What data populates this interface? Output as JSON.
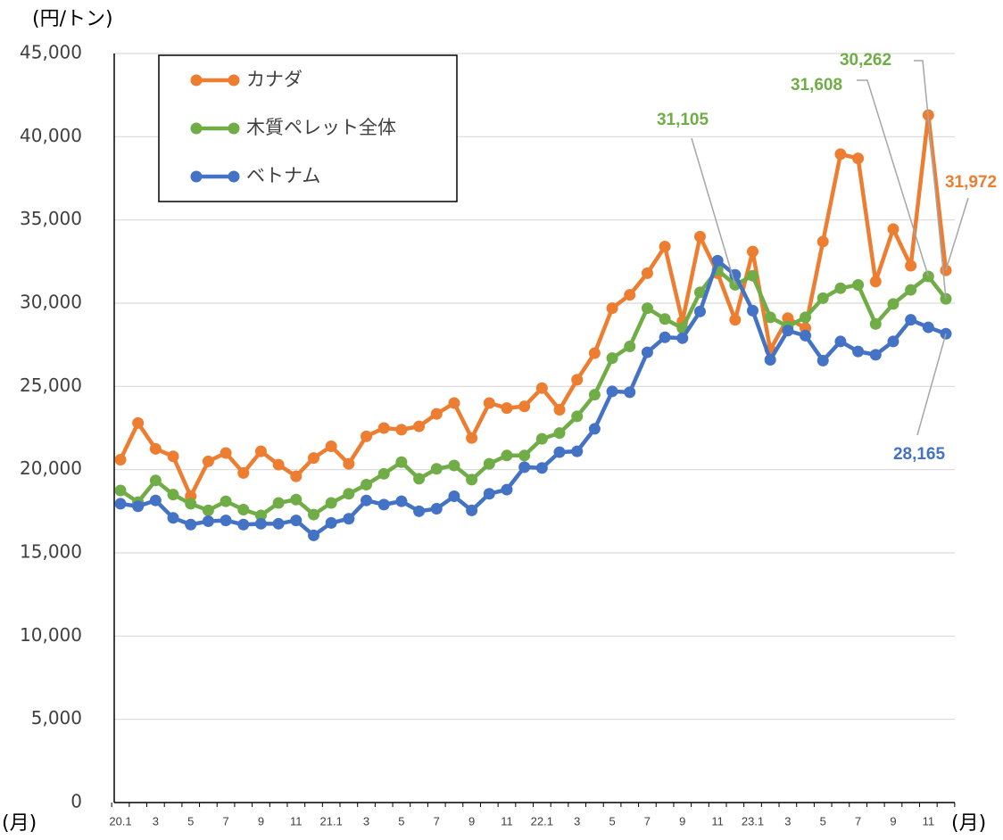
{
  "chart_data": {
    "type": "line",
    "y_label": "(円/トン)",
    "x_label": "(月)",
    "categories": [
      "20.1",
      null,
      "3",
      null,
      "5",
      null,
      "7",
      null,
      "9",
      null,
      "11",
      null,
      "21.1",
      null,
      "3",
      null,
      "5",
      null,
      "7",
      null,
      "9",
      null,
      "11",
      null,
      "22.1",
      null,
      "3",
      null,
      "5",
      null,
      "7",
      null,
      "9",
      null,
      "11",
      null,
      "23.1",
      null,
      "3",
      null,
      "5",
      null,
      "7",
      null,
      "9",
      null,
      "11",
      null
    ],
    "series": [
      {
        "name": "カナダ",
        "color": "#ed7d31",
        "values": [
          20600,
          22800,
          21250,
          20800,
          18400,
          20500,
          21000,
          19800,
          21100,
          20300,
          19600,
          20700,
          21400,
          20350,
          22000,
          22500,
          22400,
          22600,
          23350,
          24000,
          21900,
          24000,
          23700,
          23800,
          24900,
          23600,
          25400,
          27000,
          29700,
          30500,
          31800,
          33400,
          28900,
          34000,
          31800,
          29000,
          33100,
          27200,
          29100,
          28500,
          33700,
          38950,
          38700,
          31300,
          34450,
          32250,
          41300,
          31972
        ],
        "value_labels": [
          null,
          null,
          null,
          null,
          null,
          null,
          null,
          null,
          null,
          null,
          null,
          null,
          null,
          null,
          null,
          null,
          null,
          null,
          null,
          null,
          null,
          null,
          null,
          null,
          null,
          null,
          null,
          null,
          null,
          null,
          null,
          null,
          null,
          null,
          null,
          null,
          null,
          null,
          null,
          null,
          null,
          null,
          null,
          null,
          null,
          null,
          null,
          "31,972"
        ]
      },
      {
        "name": "木質ペレット全体",
        "color": "#70ad47",
        "values": [
          18750,
          18050,
          19350,
          18500,
          17950,
          17550,
          18100,
          17600,
          17250,
          18000,
          18200,
          17300,
          18000,
          18550,
          19100,
          19750,
          20450,
          19450,
          20050,
          20250,
          19400,
          20350,
          20850,
          20850,
          21850,
          22200,
          23200,
          24500,
          26700,
          27400,
          29700,
          29050,
          28500,
          30650,
          32000,
          31105,
          31650,
          29150,
          28600,
          29150,
          30300,
          30900,
          31100,
          28750,
          29950,
          30800,
          31608,
          30262
        ],
        "value_labels": [
          null,
          null,
          null,
          null,
          null,
          null,
          null,
          null,
          null,
          null,
          null,
          null,
          null,
          null,
          null,
          null,
          null,
          null,
          null,
          null,
          null,
          null,
          null,
          null,
          null,
          null,
          null,
          null,
          null,
          null,
          null,
          null,
          null,
          null,
          null,
          "31,105",
          null,
          null,
          null,
          null,
          null,
          null,
          null,
          null,
          null,
          null,
          "31,608",
          "30,262"
        ]
      },
      {
        "name": "ベトナム",
        "color": "#4472c4",
        "values": [
          17950,
          17800,
          18150,
          17100,
          16700,
          16900,
          16950,
          16700,
          16750,
          16750,
          16950,
          16050,
          16800,
          17050,
          18150,
          17900,
          18100,
          17500,
          17650,
          18400,
          17550,
          18550,
          18800,
          20150,
          20100,
          21050,
          21100,
          22450,
          24700,
          24650,
          27050,
          27950,
          27900,
          29500,
          32550,
          31700,
          29550,
          26600,
          28350,
          28050,
          26550,
          27700,
          27100,
          26900,
          27700,
          29000,
          28550,
          28165
        ],
        "value_labels": [
          null,
          null,
          null,
          null,
          null,
          null,
          null,
          null,
          null,
          null,
          null,
          null,
          null,
          null,
          null,
          null,
          null,
          null,
          null,
          null,
          null,
          null,
          null,
          null,
          null,
          null,
          null,
          null,
          null,
          null,
          null,
          null,
          null,
          null,
          null,
          null,
          null,
          null,
          null,
          null,
          null,
          null,
          null,
          null,
          null,
          null,
          null,
          "28,165"
        ]
      }
    ],
    "ylim": [
      0,
      45000
    ],
    "yticks": [
      0,
      {
        "value": 5000,
        "label": "5,000"
      },
      {
        "value": 10000,
        "label": "10,000"
      },
      {
        "value": 15000,
        "label": "15,000"
      },
      {
        "value": 20000,
        "label": "20,000"
      },
      {
        "value": 25000,
        "label": "25,000"
      },
      {
        "value": 30000,
        "label": "30,000"
      },
      {
        "value": 35000,
        "label": "35,000"
      },
      {
        "value": 40000,
        "label": "40,000"
      },
      {
        "value": 45000,
        "label": "45,000"
      }
    ],
    "grid": true,
    "legend": "upper left"
  }
}
